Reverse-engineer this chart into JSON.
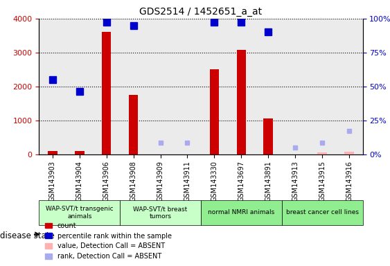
{
  "title": "GDS2514 / 1452651_a_at",
  "samples": [
    "GSM143903",
    "GSM143904",
    "GSM143906",
    "GSM143908",
    "GSM143909",
    "GSM143911",
    "GSM143330",
    "GSM143697",
    "GSM143891",
    "GSM143913",
    "GSM143915",
    "GSM143916"
  ],
  "count_values": [
    100,
    90,
    3600,
    1750,
    0,
    0,
    2500,
    3080,
    1060,
    0,
    0,
    0
  ],
  "count_absent": [
    false,
    false,
    false,
    false,
    true,
    true,
    false,
    false,
    false,
    true,
    true,
    true
  ],
  "count_absent_values": [
    0,
    0,
    0,
    0,
    0,
    0,
    0,
    0,
    0,
    0,
    60,
    70
  ],
  "rank_values": [
    2200,
    1850,
    3900,
    3800,
    0,
    0,
    3900,
    3900,
    3600,
    0,
    0,
    0
  ],
  "rank_absent": [
    false,
    false,
    false,
    false,
    true,
    true,
    false,
    false,
    false,
    true,
    true,
    true
  ],
  "rank_absent_values": [
    0,
    0,
    0,
    0,
    350,
    350,
    0,
    0,
    0,
    200,
    340,
    680
  ],
  "groups": [
    {
      "label": "WAP-SVT/t transgenic\nanimals",
      "indices": [
        0,
        1,
        2
      ],
      "color": "#c8ffc8"
    },
    {
      "label": "WAP-SVT/t breast\ntumors",
      "indices": [
        3,
        4,
        5
      ],
      "color": "#c8ffc8"
    },
    {
      "label": "normal NMRI animals",
      "indices": [
        6,
        7,
        8
      ],
      "color": "#90ee90"
    },
    {
      "label": "breast cancer cell lines",
      "indices": [
        9,
        10,
        11
      ],
      "color": "#90ee90"
    }
  ],
  "disease_state_label": "disease state",
  "ylim_left": [
    0,
    4000
  ],
  "ylim_right": [
    0,
    100
  ],
  "yticks_left": [
    0,
    1000,
    2000,
    3000,
    4000
  ],
  "yticks_right": [
    0,
    25,
    50,
    75,
    100
  ],
  "bar_color": "#cc0000",
  "absent_bar_color": "#ffb0b0",
  "rank_color": "#0000cc",
  "absent_rank_color": "#aaaaee",
  "bg_color": "#f0f0f0",
  "legend_items": [
    {
      "label": "count",
      "color": "#cc0000",
      "marker": "s"
    },
    {
      "label": "percentile rank within the sample",
      "color": "#0000cc",
      "marker": "s"
    },
    {
      "label": "value, Detection Call = ABSENT",
      "color": "#ffb0b0",
      "marker": "s"
    },
    {
      "label": "rank, Detection Call = ABSENT",
      "color": "#aaaaee",
      "marker": "s"
    }
  ]
}
